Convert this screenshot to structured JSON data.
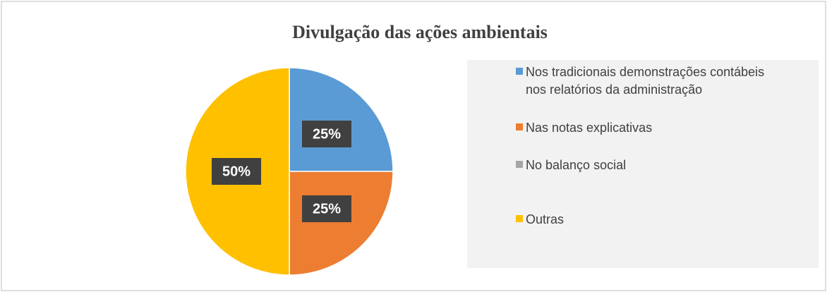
{
  "chart_data": {
    "type": "pie",
    "title": "Divulgação das ações ambientais",
    "categories": [
      "Nos tradicionais demonstrações contábeis nos relatórios da administração",
      "Nas notas explicativas",
      "No balanço social",
      "Outras"
    ],
    "values": [
      25,
      25,
      0,
      50
    ],
    "value_labels": [
      "25%",
      "25%",
      null,
      "50%"
    ],
    "colors": [
      "#5b9bd5",
      "#ed7d31",
      "#a5a5a5",
      "#ffc000"
    ],
    "legend": "right"
  }
}
